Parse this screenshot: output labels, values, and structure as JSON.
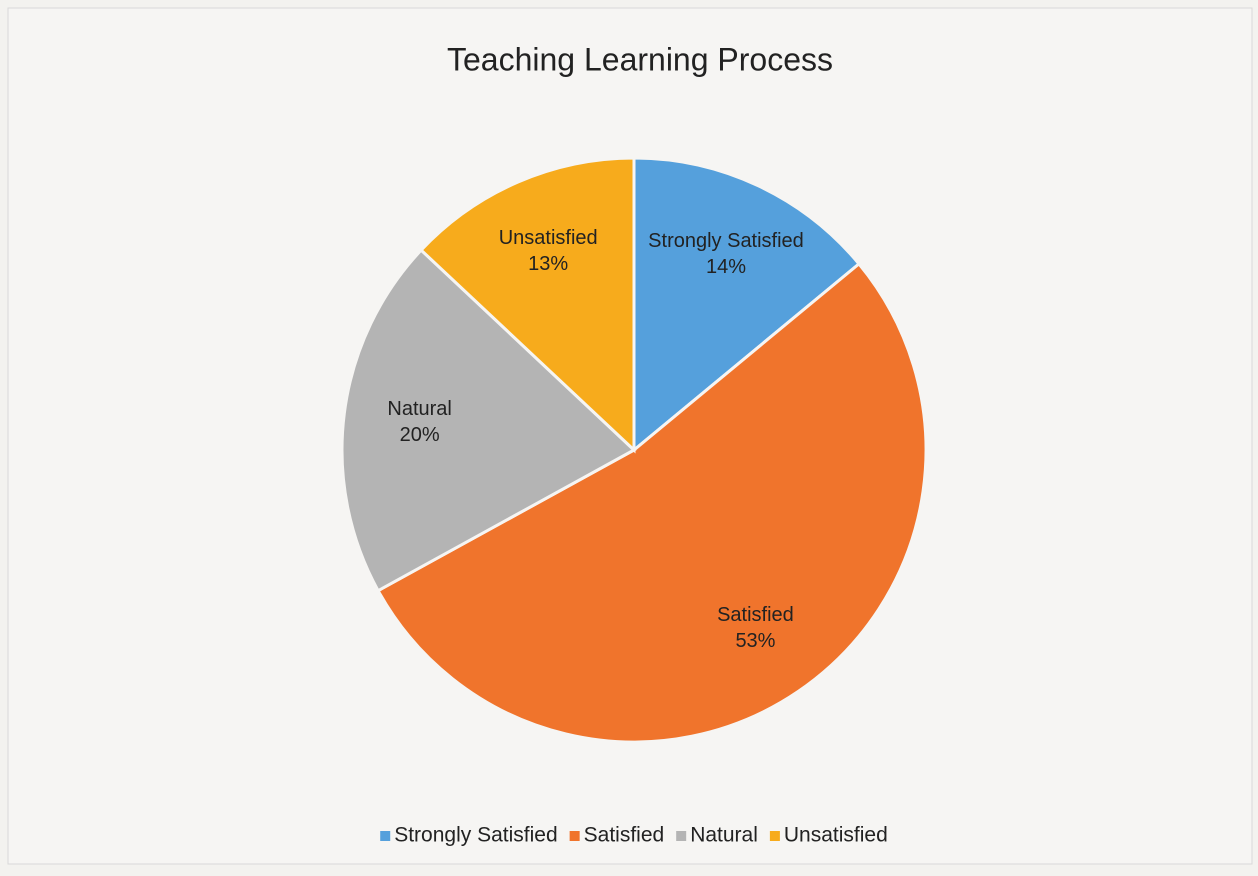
{
  "chart_data": {
    "type": "pie",
    "title": "Teaching Learning Process",
    "categories": [
      "Strongly Satisfied",
      "Satisfied",
      "Natural",
      "Unsatisfied"
    ],
    "values": [
      14,
      53,
      20,
      13
    ],
    "value_labels": [
      "14%",
      "53%",
      "20%",
      "13%"
    ],
    "colors": [
      "#55a0dc",
      "#f0742c",
      "#b4b4b4",
      "#f7ab1c"
    ],
    "legend": "bottom"
  }
}
